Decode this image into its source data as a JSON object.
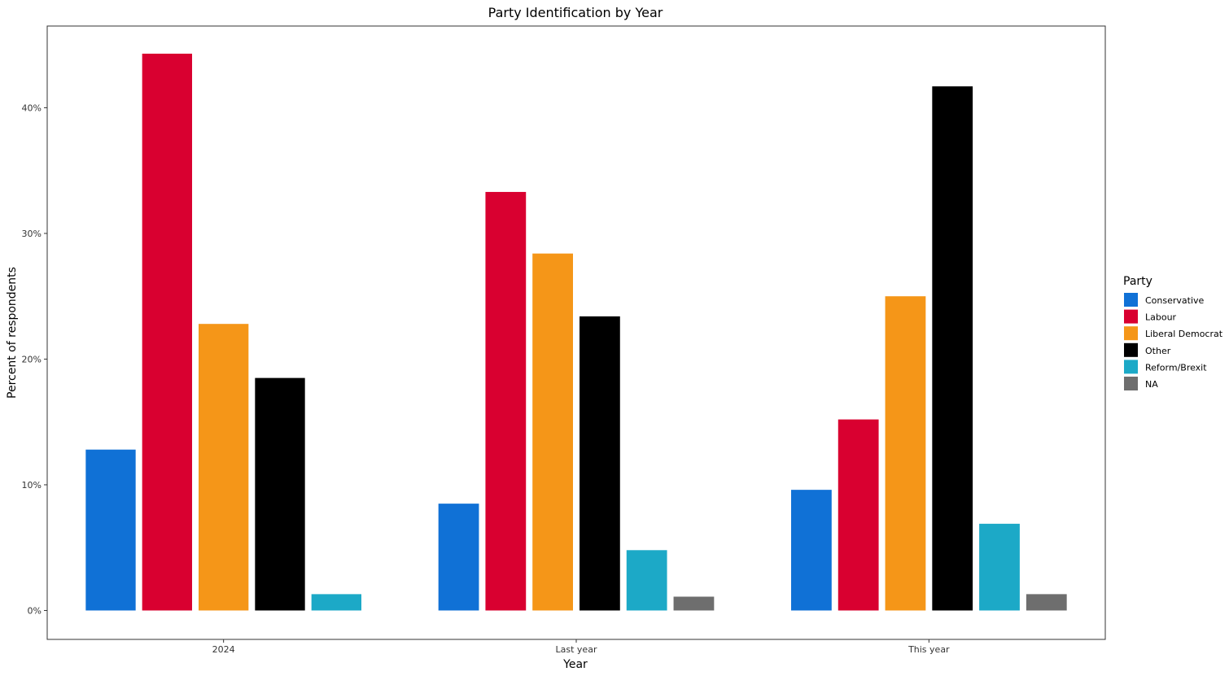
{
  "chart_data": {
    "type": "bar",
    "title": "Party Identification by Year",
    "xlabel": "Year",
    "ylabel": "Percent of respondents",
    "categories": [
      "2024",
      "Last year",
      "This year"
    ],
    "ylim": [
      -2.3,
      46.5
    ],
    "yticks": [
      0,
      10,
      20,
      30,
      40
    ],
    "ytick_labels": [
      "0%",
      "10%",
      "20%",
      "30%",
      "40%"
    ],
    "grid": false,
    "legend": {
      "title": "Party",
      "placement": "right"
    },
    "series": [
      {
        "name": "Conservative",
        "color": "#1071d6",
        "values": [
          12.8,
          8.5,
          9.6
        ]
      },
      {
        "name": "Labour",
        "color": "#d90030",
        "values": [
          44.3,
          33.3,
          15.2
        ]
      },
      {
        "name": "Liberal Democrat",
        "color": "#f59618",
        "values": [
          22.8,
          28.4,
          25.0
        ]
      },
      {
        "name": "Other",
        "color": "#000000",
        "values": [
          18.5,
          23.4,
          41.7
        ]
      },
      {
        "name": "Reform/Brexit",
        "color": "#1ca9c7",
        "values": [
          1.3,
          4.8,
          6.9
        ]
      },
      {
        "name": "NA",
        "color": "#6e6e6e",
        "values": [
          null,
          1.1,
          1.3
        ]
      }
    ]
  }
}
